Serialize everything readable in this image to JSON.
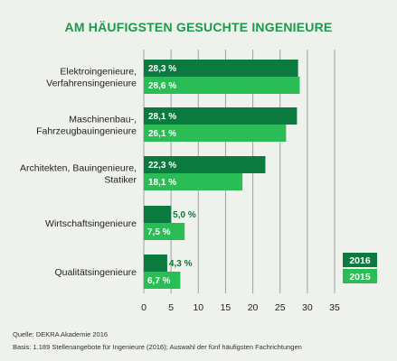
{
  "chart_data": {
    "type": "bar",
    "orientation": "horizontal",
    "title": "AM HÄUFIGSTEN GESUCHTE INGENIEURE",
    "categories": [
      [
        "Elektroingenieure,",
        "Verfahrensingenieure"
      ],
      [
        "Maschinenbau-,",
        "Fahrzeugbauingenieure"
      ],
      [
        "Architekten, Bauingenieure,",
        "Statiker"
      ],
      [
        "Wirtschaftsingenieure"
      ],
      [
        "Qualitätsingenieure"
      ]
    ],
    "series": [
      {
        "name": "2016",
        "values": [
          28.3,
          28.1,
          22.3,
          5.0,
          4.3
        ],
        "labels": [
          "28,3 %",
          "28,1 %",
          "22,3 %",
          "5,0 %",
          "4,3 %"
        ],
        "color": "#0b7a3e"
      },
      {
        "name": "2015",
        "values": [
          28.6,
          26.1,
          18.1,
          7.5,
          6.7
        ],
        "labels": [
          "28,6 %",
          "26,1 %",
          "18,1 %",
          "7,5 %",
          "6,7 %"
        ],
        "color": "#2bbd55"
      }
    ],
    "xlim": [
      0,
      35
    ],
    "xticks": [
      0,
      5,
      10,
      15,
      20,
      25,
      30,
      35
    ],
    "grid": true,
    "legend_position": "bottom-right",
    "source_lines": [
      "Quelle: DEKRA Akademie 2016",
      "Basis: 1.189 Stellenangebote für Ingenieure (2016); Auswahl der fünf häufigsten Fachrichtungen"
    ]
  }
}
